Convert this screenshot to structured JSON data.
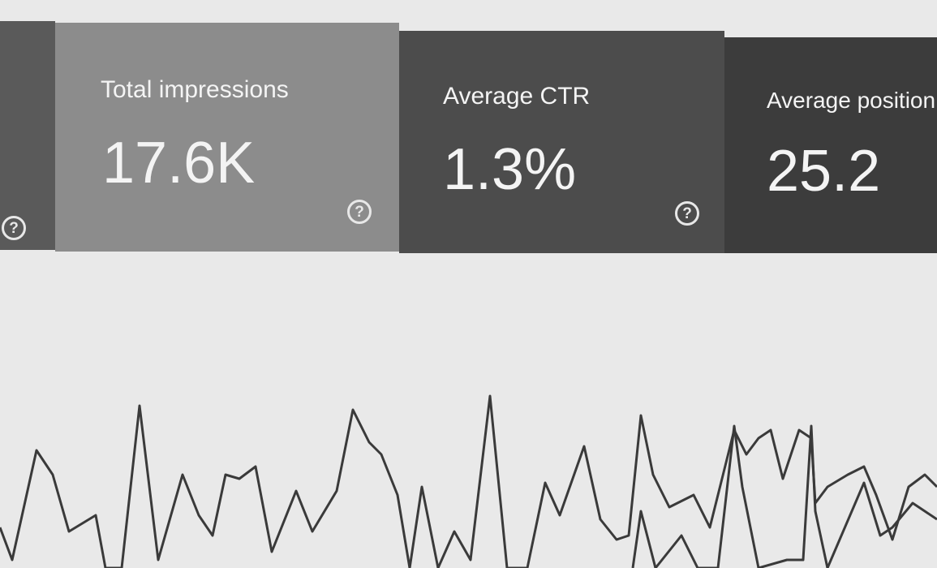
{
  "cards": [
    {
      "help_icon": "?"
    },
    {
      "label": "Total impressions",
      "value": "17.6K",
      "help_icon": "?"
    },
    {
      "label": "Average CTR",
      "value": "1.3%",
      "help_icon": "?"
    },
    {
      "label": "Average position",
      "value": "25.2"
    }
  ]
}
